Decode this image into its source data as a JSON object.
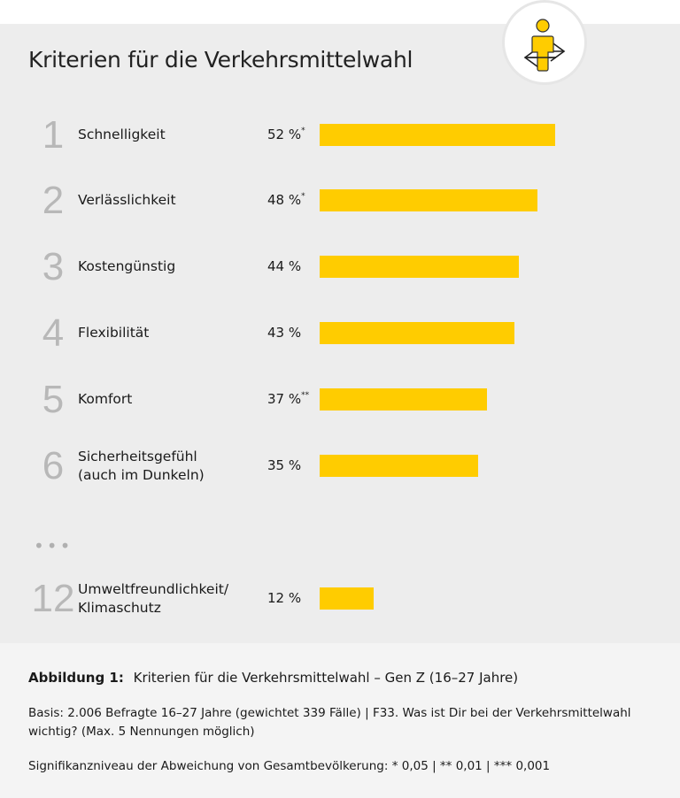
{
  "title": "Kriterien für die Verkehrsmittelwahl",
  "icon": "person-arrows-left-right-icon",
  "colors": {
    "bar": "#ffcc00",
    "panel": "#ededed",
    "caption_bg": "#f4f4f4",
    "rank": "#b8b8b8"
  },
  "chart_data": {
    "type": "bar",
    "orientation": "horizontal",
    "title": "Kriterien für die Verkehrsmittelwahl",
    "unit": "%",
    "categories": [
      "Schnelligkeit",
      "Verlässlichkeit",
      "Kostengünstig",
      "Flexibilität",
      "Komfort",
      "Sicherheitsgefühl (auch im Dunkeln)",
      "Umweltfreundlichkeit/ Klimaschutz"
    ],
    "values": [
      52,
      48,
      44,
      43,
      37,
      35,
      12
    ],
    "rows": [
      {
        "rank": "1",
        "label": "Schnelligkeit",
        "value": 52,
        "value_label": "52 %",
        "sig": "*"
      },
      {
        "rank": "2",
        "label": "Verlässlichkeit",
        "value": 48,
        "value_label": "48 %",
        "sig": "*"
      },
      {
        "rank": "3",
        "label": "Kostengünstig",
        "value": 44,
        "value_label": "44 %",
        "sig": ""
      },
      {
        "rank": "4",
        "label": "Flexibilität",
        "value": 43,
        "value_label": "43 %",
        "sig": ""
      },
      {
        "rank": "5",
        "label": "Komfort",
        "value": 37,
        "value_label": "37 %",
        "sig": "**"
      },
      {
        "rank": "6",
        "label": "Sicherheitsgefühl",
        "label2": "(auch im Dunkeln)",
        "value": 35,
        "value_label": "35 %",
        "sig": ""
      },
      {
        "rank": "12",
        "label": "Umweltfreundlichkeit/",
        "label2": "Klimaschutz",
        "value": 12,
        "value_label": "12 %",
        "sig": ""
      }
    ],
    "ellipsis": "•••",
    "grid": false
  },
  "caption": {
    "figure_label": "Abbildung 1:",
    "figure_title": "Kriterien für die Verkehrsmittelwahl – Gen Z (16–27 Jahre)",
    "basis": "Basis: 2.006 Befragte 16–27 Jahre (gewichtet 339 Fälle) | F33. Was ist Dir bei der Verkehrsmittelwahl wichtig? (Max. 5 Nennungen möglich)",
    "significance": "Signifikanzniveau der Abweichung von Gesamtbevölkerung: * 0,05 | ** 0,01 | *** 0,001"
  }
}
